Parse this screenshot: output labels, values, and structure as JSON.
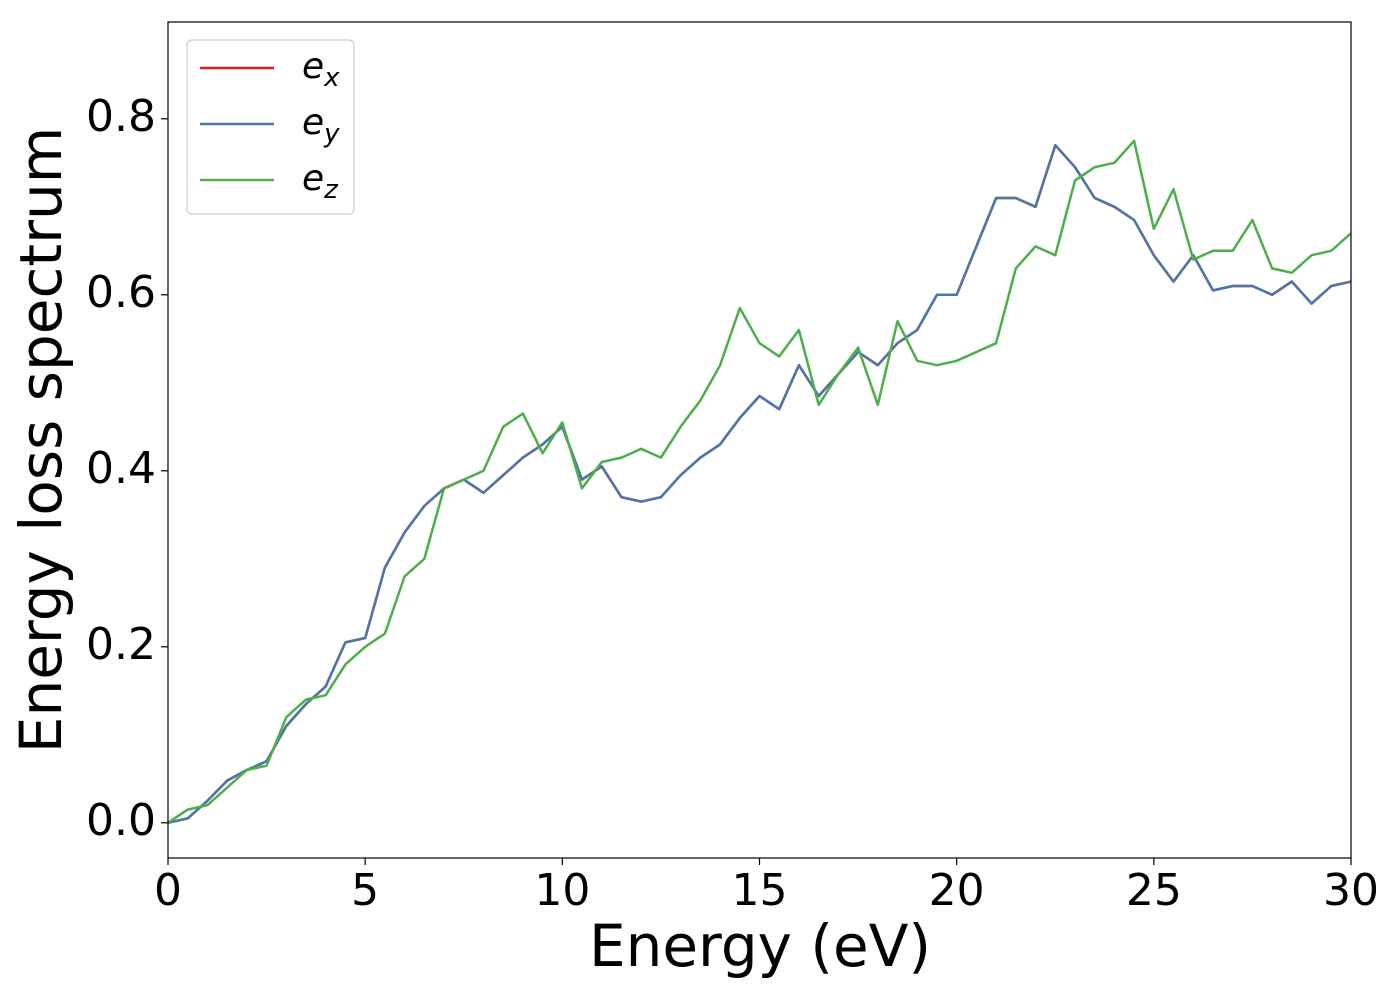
{
  "chart_data": {
    "type": "line",
    "xlabel": "Energy (eV)",
    "ylabel": "Energy loss spectrum",
    "xlim": [
      0,
      30
    ],
    "xticks": [
      0,
      5,
      10,
      15,
      20,
      25,
      30
    ],
    "ylim": [
      -0.04,
      0.91
    ],
    "yticks": [
      {
        "value": 0,
        "label": "0.0"
      },
      0.2,
      0.4,
      0.6,
      0.8
    ],
    "legend": "upper left",
    "x": [
      0,
      0.5,
      1,
      1.5,
      2,
      2.5,
      3,
      3.5,
      4,
      4.5,
      5,
      5.5,
      6,
      6.5,
      7,
      7.5,
      8,
      8.5,
      9,
      9.5,
      10,
      10.5,
      11,
      11.5,
      12,
      12.5,
      13,
      13.5,
      14,
      14.5,
      15,
      15.5,
      16,
      16.5,
      17,
      17.5,
      18,
      18.5,
      19,
      19.5,
      20,
      20.5,
      21,
      21.5,
      22,
      22.5,
      23,
      23.5,
      24,
      24.5,
      25,
      25.5,
      26,
      26.5,
      27,
      27.5,
      28,
      28.5,
      29,
      29.5,
      30
    ],
    "series": [
      {
        "name": "e",
        "name_sub": "x",
        "color": "#e41a1c",
        "values": [
          0,
          0.005,
          0.025,
          0.048,
          0.06,
          0.07,
          0.11,
          0.135,
          0.155,
          0.205,
          0.21,
          0.29,
          0.33,
          0.36,
          0.38,
          0.39,
          0.375,
          0.395,
          0.415,
          0.43,
          0.45,
          0.39,
          0.405,
          0.37,
          0.365,
          0.37,
          0.395,
          0.415,
          0.43,
          0.46,
          0.485,
          0.47,
          0.52,
          0.485,
          0.51,
          0.535,
          0.52,
          0.545,
          0.56,
          0.6,
          0.6,
          0.655,
          0.71,
          0.71,
          0.7,
          0.77,
          0.745,
          0.71,
          0.7,
          0.685,
          0.645,
          0.615,
          0.645,
          0.605,
          0.61,
          0.61,
          0.6,
          0.615,
          0.59,
          0.61,
          0.615
        ]
      },
      {
        "name": "e",
        "name_sub": "y",
        "color": "#4a78a8",
        "values": [
          0,
          0.005,
          0.025,
          0.048,
          0.06,
          0.07,
          0.11,
          0.135,
          0.155,
          0.205,
          0.21,
          0.29,
          0.33,
          0.36,
          0.38,
          0.39,
          0.375,
          0.395,
          0.415,
          0.43,
          0.45,
          0.39,
          0.405,
          0.37,
          0.365,
          0.37,
          0.395,
          0.415,
          0.43,
          0.46,
          0.485,
          0.47,
          0.52,
          0.485,
          0.51,
          0.535,
          0.52,
          0.545,
          0.56,
          0.6,
          0.6,
          0.655,
          0.71,
          0.71,
          0.7,
          0.77,
          0.745,
          0.71,
          0.7,
          0.685,
          0.645,
          0.615,
          0.645,
          0.605,
          0.61,
          0.61,
          0.6,
          0.615,
          0.59,
          0.61,
          0.615
        ]
      },
      {
        "name": "e",
        "name_sub": "z",
        "color": "#4daf4a",
        "values": [
          0,
          0.015,
          0.02,
          0.04,
          0.06,
          0.065,
          0.12,
          0.14,
          0.145,
          0.18,
          0.2,
          0.215,
          0.28,
          0.3,
          0.38,
          0.39,
          0.4,
          0.45,
          0.465,
          0.42,
          0.455,
          0.38,
          0.41,
          0.415,
          0.425,
          0.415,
          0.45,
          0.48,
          0.52,
          0.585,
          0.545,
          0.53,
          0.56,
          0.475,
          0.51,
          0.54,
          0.475,
          0.57,
          0.525,
          0.52,
          0.525,
          0.535,
          0.545,
          0.63,
          0.655,
          0.645,
          0.73,
          0.745,
          0.75,
          0.775,
          0.675,
          0.72,
          0.64,
          0.65,
          0.65,
          0.685,
          0.63,
          0.625,
          0.645,
          0.65,
          0.67
        ]
      }
    ]
  }
}
